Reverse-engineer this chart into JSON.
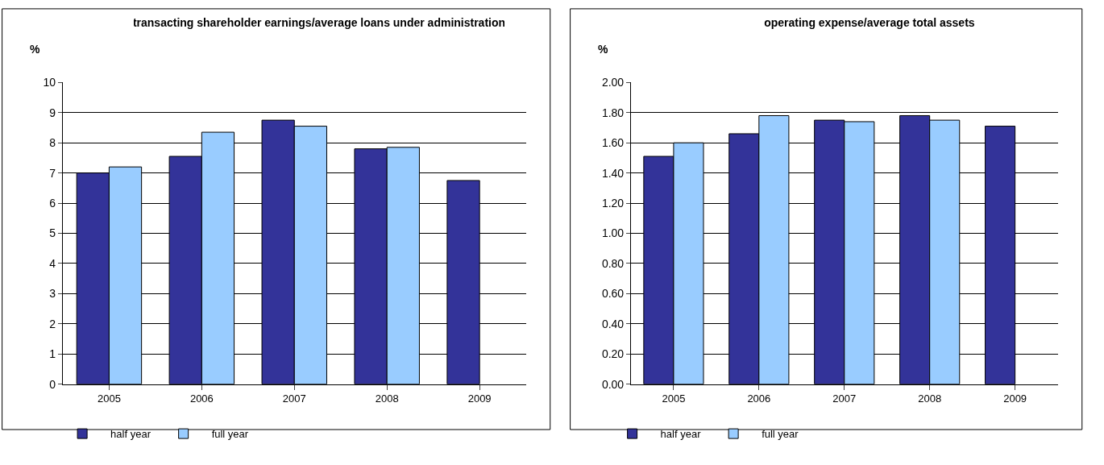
{
  "chart_data": [
    {
      "type": "bar",
      "title": "transacting shareholder earnings/average loans under administration",
      "ylabel": "%",
      "categories": [
        "2005",
        "2006",
        "2007",
        "2008",
        "2009"
      ],
      "series": [
        {
          "name": "half year",
          "color": "#333399",
          "values": [
            7.0,
            7.55,
            8.75,
            7.8,
            6.75
          ]
        },
        {
          "name": "full year",
          "color": "#99ccff",
          "values": [
            7.2,
            8.35,
            8.55,
            7.85,
            null
          ]
        }
      ],
      "ylim": [
        0,
        10
      ],
      "yticks": [
        0,
        1,
        2,
        3,
        4,
        5,
        6,
        7,
        8,
        9,
        10
      ],
      "grid": "y",
      "legend": "bottom"
    },
    {
      "type": "bar",
      "title": "operating expense/average total assets",
      "ylabel": "%",
      "categories": [
        "2005",
        "2006",
        "2007",
        "2008",
        "2009"
      ],
      "series": [
        {
          "name": "half year",
          "color": "#333399",
          "values": [
            1.51,
            1.66,
            1.75,
            1.78,
            1.71
          ]
        },
        {
          "name": "full year",
          "color": "#99ccff",
          "values": [
            1.6,
            1.78,
            1.74,
            1.75,
            null
          ]
        }
      ],
      "ylim": [
        0,
        2
      ],
      "yticks": [
        {
          "value": 0,
          "label": "0.00"
        },
        {
          "value": 0.2,
          "label": "0.20"
        },
        {
          "value": 0.4,
          "label": "0.40"
        },
        {
          "value": 0.6,
          "label": "0.60"
        },
        {
          "value": 0.8,
          "label": "0.80"
        },
        {
          "value": 1.0,
          "label": "1.00"
        },
        {
          "value": 1.2,
          "label": "1.20"
        },
        {
          "value": 1.4,
          "label": "1.40"
        },
        {
          "value": 1.6,
          "label": "1.60"
        },
        {
          "value": 1.8,
          "label": "1.80"
        },
        {
          "value": 2.0,
          "label": "2.00"
        }
      ],
      "grid": "y",
      "legend": "bottom"
    }
  ]
}
